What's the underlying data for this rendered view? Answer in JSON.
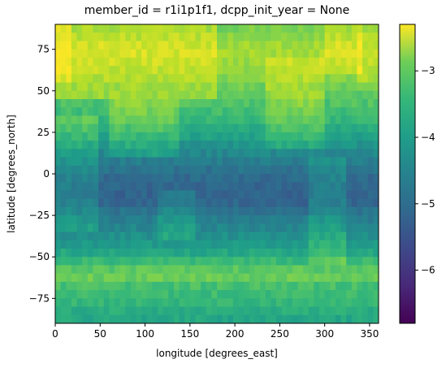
{
  "chart_data": {
    "type": "heatmap",
    "title": "member_id = r1i1p1f1, dcpp_init_year = None",
    "xlabel": "longitude [degrees_east]",
    "ylabel": "latitude [degrees_north]",
    "xlim": [
      0,
      360
    ],
    "ylim": [
      -90,
      90
    ],
    "x_ticks": [
      0,
      50,
      100,
      150,
      200,
      250,
      300,
      350
    ],
    "y_ticks": [
      -75,
      -50,
      -25,
      0,
      25,
      50,
      75
    ],
    "colormap": "viridis",
    "colorbar": {
      "range": [
        -6.8,
        -2.3
      ],
      "ticks": [
        -6,
        -5,
        -4,
        -3
      ],
      "tick_labels": [
        "−6",
        "−5",
        "−4",
        "−3"
      ]
    },
    "grid": false,
    "field_description_by_latitude": {
      "lat": [
        90,
        75,
        60,
        45,
        30,
        15,
        0,
        -15,
        -30,
        -45,
        -60,
        -75,
        -90
      ],
      "zonal_mean_value": [
        -3.3,
        -2.9,
        -3.1,
        -3.5,
        -3.9,
        -4.6,
        -5.2,
        -5.4,
        -4.8,
        -4.3,
        -3.3,
        -3.6,
        -4.0
      ]
    }
  }
}
